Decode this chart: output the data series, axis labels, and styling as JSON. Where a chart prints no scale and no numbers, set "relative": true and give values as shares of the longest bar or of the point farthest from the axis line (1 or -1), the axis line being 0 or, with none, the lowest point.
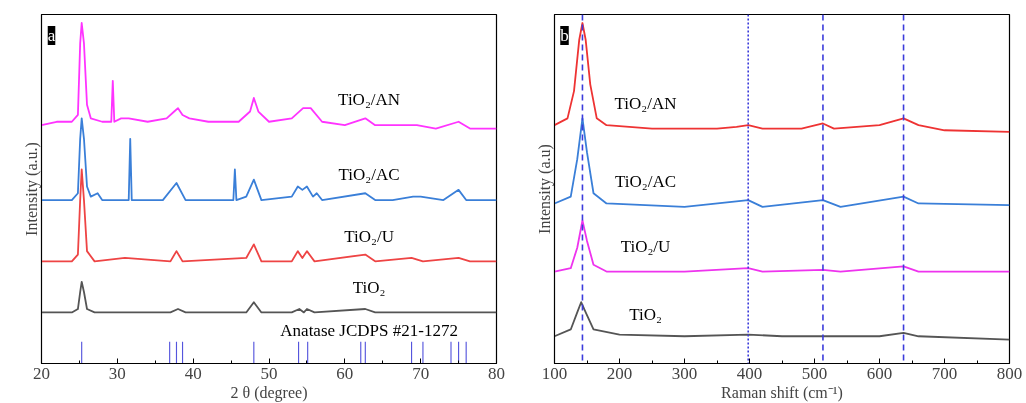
{
  "chart_data": [
    {
      "type": "line",
      "relative": true,
      "tick_labels": "x",
      "xlabel": "2 θ (degree)",
      "ylabel": "Intensity (a.u.)",
      "xlim": [
        20,
        80
      ],
      "xticks": [
        20,
        30,
        40,
        50,
        60,
        70,
        80
      ],
      "annotations": [
        "a"
      ],
      "series": [
        {
          "name": "TiO₂/AN",
          "color": "#ff33ff",
          "x": [
            20,
            22,
            24,
            24.8,
            25.1,
            25.3,
            25.6,
            26,
            26.5,
            28,
            29.2,
            29.4,
            29.6,
            30.5,
            31.5,
            34,
            36.5,
            37.5,
            38,
            38.6,
            39.5,
            42,
            46,
            47.5,
            48,
            48.6,
            50,
            53,
            54.5,
            55.5,
            57,
            60,
            62.7,
            64,
            67,
            69.5,
            72,
            75,
            76.5,
            80
          ],
          "values": [
            0.7,
            0.71,
            0.71,
            0.73,
            0.94,
            1.0,
            0.94,
            0.76,
            0.72,
            0.71,
            0.71,
            0.83,
            0.71,
            0.72,
            0.72,
            0.71,
            0.72,
            0.74,
            0.75,
            0.73,
            0.72,
            0.71,
            0.71,
            0.74,
            0.78,
            0.74,
            0.71,
            0.72,
            0.75,
            0.75,
            0.71,
            0.7,
            0.72,
            0.7,
            0.7,
            0.7,
            0.69,
            0.71,
            0.69,
            0.69
          ]
        },
        {
          "name": "TiO₂/AC",
          "color": "#3a7fd8",
          "x": [
            20,
            24,
            24.8,
            25.1,
            25.3,
            25.6,
            26,
            26.5,
            27.4,
            28,
            31.5,
            31.7,
            31.9,
            36,
            37.8,
            39,
            45.3,
            45.5,
            45.7,
            47,
            48,
            49,
            53,
            53.8,
            54.4,
            55,
            55.8,
            56.3,
            57,
            62.7,
            64,
            66.3,
            69,
            70,
            73,
            75,
            76,
            80
          ],
          "values": [
            0.48,
            0.48,
            0.5,
            0.66,
            0.72,
            0.66,
            0.52,
            0.49,
            0.5,
            0.48,
            0.48,
            0.66,
            0.48,
            0.48,
            0.53,
            0.48,
            0.48,
            0.57,
            0.48,
            0.49,
            0.54,
            0.48,
            0.49,
            0.52,
            0.51,
            0.52,
            0.49,
            0.5,
            0.48,
            0.5,
            0.48,
            0.48,
            0.49,
            0.49,
            0.48,
            0.51,
            0.48,
            0.48
          ]
        },
        {
          "name": "TiO₂/U",
          "color": "#ee4444",
          "x": [
            20,
            24,
            24.8,
            25.1,
            25.3,
            25.6,
            26,
            27,
            31,
            37,
            37.8,
            38.6,
            47,
            48,
            49,
            53,
            53.8,
            54.4,
            55,
            56,
            62.7,
            64,
            68.8,
            70.3,
            75,
            76.5,
            80
          ],
          "values": [
            0.3,
            0.3,
            0.32,
            0.48,
            0.57,
            0.48,
            0.33,
            0.3,
            0.31,
            0.3,
            0.33,
            0.3,
            0.31,
            0.35,
            0.3,
            0.3,
            0.33,
            0.31,
            0.33,
            0.3,
            0.32,
            0.3,
            0.31,
            0.3,
            0.31,
            0.3,
            0.3
          ]
        },
        {
          "name": "TiO₂",
          "color": "#555555",
          "x": [
            20,
            24,
            24.8,
            25.1,
            25.3,
            25.6,
            26,
            27,
            37,
            38,
            39,
            47,
            48,
            49,
            53,
            54,
            54.6,
            55,
            56,
            62.7,
            64,
            80
          ],
          "values": [
            0.15,
            0.15,
            0.16,
            0.21,
            0.24,
            0.21,
            0.16,
            0.15,
            0.15,
            0.16,
            0.15,
            0.15,
            0.18,
            0.15,
            0.15,
            0.16,
            0.15,
            0.16,
            0.15,
            0.16,
            0.15,
            0.15
          ]
        },
        {
          "name": "Anatase JCDPS #21-1272",
          "type": "bar",
          "color": "#5555dd",
          "x": [
            25.3,
            36.9,
            37.8,
            38.6,
            48.0,
            53.9,
            55.1,
            62.1,
            62.7,
            68.8,
            70.3,
            74.0,
            75.0,
            76.0
          ],
          "values": [
            0.064,
            0.064,
            0.064,
            0.064,
            0.064,
            0.064,
            0.064,
            0.064,
            0.064,
            0.064,
            0.064,
            0.064,
            0.064,
            0.064
          ]
        }
      ]
    },
    {
      "type": "line",
      "relative": true,
      "tick_labels": "x",
      "xlabel": "Raman shift (cm⁻¹)",
      "ylabel": "Intensity (a.u)",
      "xlim": [
        100,
        800
      ],
      "xticks": [
        100,
        200,
        300,
        400,
        500,
        600,
        700,
        800
      ],
      "annotations": [
        "b"
      ],
      "ref_lines": [
        {
          "axis": "x",
          "value": 143,
          "color": "#3b3bdb",
          "line_style": "dashed"
        },
        {
          "axis": "x",
          "value": 398,
          "color": "#3b3bdb",
          "line_style": "dotted"
        },
        {
          "axis": "x",
          "value": 513,
          "color": "#3b3bdb",
          "line_style": "dashed"
        },
        {
          "axis": "x",
          "value": 637,
          "color": "#3b3bdb",
          "line_style": "dashed"
        }
      ],
      "series": [
        {
          "name": "TiO₂/AN",
          "color": "#ee3333",
          "x": [
            100,
            120,
            130,
            138,
            143,
            148,
            155,
            165,
            180,
            250,
            350,
            380,
            398,
            420,
            480,
            513,
            530,
            600,
            637,
            660,
            700,
            800
          ],
          "values": [
            0.7,
            0.72,
            0.8,
            0.95,
            1.0,
            0.95,
            0.82,
            0.72,
            0.7,
            0.69,
            0.69,
            0.695,
            0.7,
            0.69,
            0.69,
            0.705,
            0.69,
            0.7,
            0.72,
            0.7,
            0.685,
            0.68
          ]
        },
        {
          "name": "TiO₂/AC",
          "color": "#3a7fd8",
          "x": [
            100,
            125,
            135,
            143,
            150,
            160,
            180,
            300,
            398,
            420,
            513,
            540,
            637,
            660,
            800
          ],
          "values": [
            0.47,
            0.49,
            0.6,
            0.72,
            0.62,
            0.5,
            0.47,
            0.46,
            0.48,
            0.46,
            0.48,
            0.46,
            0.49,
            0.47,
            0.465
          ]
        },
        {
          "name": "TiO₂/U",
          "color": "#ee33ee",
          "x": [
            100,
            125,
            135,
            143,
            150,
            160,
            180,
            300,
            398,
            420,
            513,
            540,
            637,
            660,
            800
          ],
          "values": [
            0.27,
            0.28,
            0.34,
            0.42,
            0.36,
            0.29,
            0.27,
            0.27,
            0.28,
            0.27,
            0.275,
            0.27,
            0.285,
            0.27,
            0.27
          ]
        },
        {
          "name": "TiO₂",
          "color": "#555555",
          "x": [
            100,
            125,
            135,
            141,
            148,
            160,
            200,
            300,
            398,
            450,
            513,
            600,
            637,
            660,
            800
          ],
          "values": [
            0.08,
            0.1,
            0.15,
            0.18,
            0.15,
            0.1,
            0.085,
            0.08,
            0.085,
            0.08,
            0.08,
            0.08,
            0.09,
            0.08,
            0.07
          ]
        }
      ]
    }
  ]
}
